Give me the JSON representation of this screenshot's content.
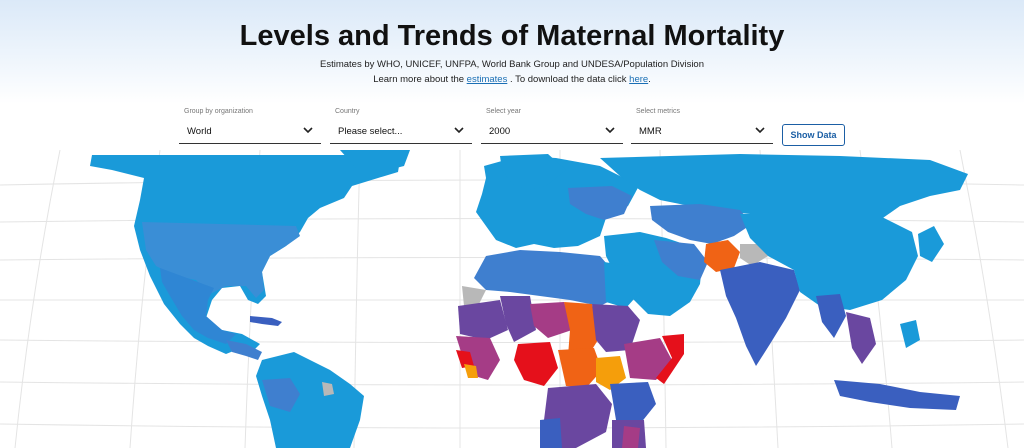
{
  "header": {
    "title": "Levels and Trends of Maternal Mortality",
    "subtitle": "Estimates by WHO, UNICEF, UNFPA, World Bank Group and UNDESA/Population Division",
    "learn_prefix": "Learn more about the ",
    "learn_link": "estimates",
    "learn_middle": " . To download the data click ",
    "download_link": "here",
    "learn_suffix": "."
  },
  "filters": {
    "organization": {
      "label": "Group by organization",
      "value": "World"
    },
    "country": {
      "label": "Country",
      "value": "Please select..."
    },
    "year": {
      "label": "Select year",
      "value": "2000"
    },
    "metrics": {
      "label": "Select metrics",
      "value": "MMR"
    },
    "show_button": "Show Data"
  },
  "map": {
    "colors": {
      "ocean": "#ffffff",
      "graticule": "#e4e4e4",
      "very_low": "#1a9ad9",
      "low": "#3f7fcf",
      "moderate": "#3a5fbf",
      "high": "#6a47a0",
      "very_high": "#a53c86",
      "severe": "#f06315",
      "extreme": "#e5101b",
      "orange": "#f59e0b",
      "no_data": "#b8b8b8"
    }
  }
}
